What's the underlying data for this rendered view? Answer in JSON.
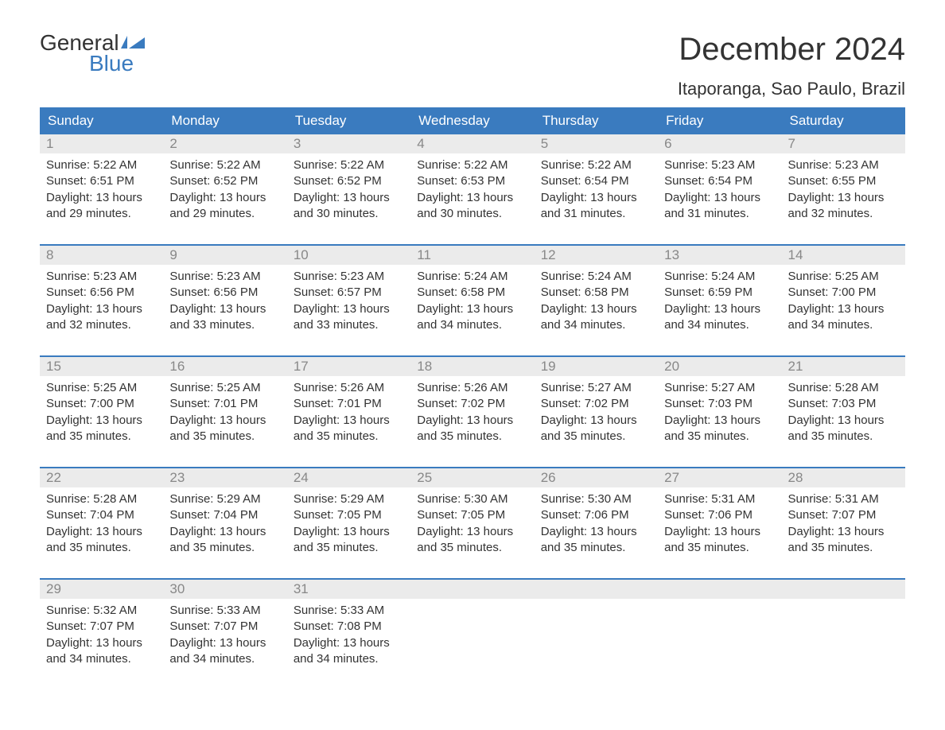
{
  "brand": {
    "word1": "General",
    "word2": "Blue",
    "accent_color": "#3a7bbf",
    "text_color": "#333333"
  },
  "title": "December 2024",
  "location": "Itaporanga, Sao Paulo, Brazil",
  "colors": {
    "header_bg": "#3a7bbf",
    "header_text": "#ffffff",
    "daynum_bg": "#ebebeb",
    "daynum_text": "#888888",
    "body_text": "#333333",
    "page_bg": "#ffffff"
  },
  "fonts": {
    "title_size_pt": 30,
    "location_size_pt": 17,
    "header_size_pt": 13,
    "day_size_pt": 13,
    "detail_size_pt": 11
  },
  "day_headers": [
    "Sunday",
    "Monday",
    "Tuesday",
    "Wednesday",
    "Thursday",
    "Friday",
    "Saturday"
  ],
  "weeks": [
    [
      {
        "n": "1",
        "sr": "Sunrise: 5:22 AM",
        "ss": "Sunset: 6:51 PM",
        "d1": "Daylight: 13 hours",
        "d2": "and 29 minutes."
      },
      {
        "n": "2",
        "sr": "Sunrise: 5:22 AM",
        "ss": "Sunset: 6:52 PM",
        "d1": "Daylight: 13 hours",
        "d2": "and 29 minutes."
      },
      {
        "n": "3",
        "sr": "Sunrise: 5:22 AM",
        "ss": "Sunset: 6:52 PM",
        "d1": "Daylight: 13 hours",
        "d2": "and 30 minutes."
      },
      {
        "n": "4",
        "sr": "Sunrise: 5:22 AM",
        "ss": "Sunset: 6:53 PM",
        "d1": "Daylight: 13 hours",
        "d2": "and 30 minutes."
      },
      {
        "n": "5",
        "sr": "Sunrise: 5:22 AM",
        "ss": "Sunset: 6:54 PM",
        "d1": "Daylight: 13 hours",
        "d2": "and 31 minutes."
      },
      {
        "n": "6",
        "sr": "Sunrise: 5:23 AM",
        "ss": "Sunset: 6:54 PM",
        "d1": "Daylight: 13 hours",
        "d2": "and 31 minutes."
      },
      {
        "n": "7",
        "sr": "Sunrise: 5:23 AM",
        "ss": "Sunset: 6:55 PM",
        "d1": "Daylight: 13 hours",
        "d2": "and 32 minutes."
      }
    ],
    [
      {
        "n": "8",
        "sr": "Sunrise: 5:23 AM",
        "ss": "Sunset: 6:56 PM",
        "d1": "Daylight: 13 hours",
        "d2": "and 32 minutes."
      },
      {
        "n": "9",
        "sr": "Sunrise: 5:23 AM",
        "ss": "Sunset: 6:56 PM",
        "d1": "Daylight: 13 hours",
        "d2": "and 33 minutes."
      },
      {
        "n": "10",
        "sr": "Sunrise: 5:23 AM",
        "ss": "Sunset: 6:57 PM",
        "d1": "Daylight: 13 hours",
        "d2": "and 33 minutes."
      },
      {
        "n": "11",
        "sr": "Sunrise: 5:24 AM",
        "ss": "Sunset: 6:58 PM",
        "d1": "Daylight: 13 hours",
        "d2": "and 34 minutes."
      },
      {
        "n": "12",
        "sr": "Sunrise: 5:24 AM",
        "ss": "Sunset: 6:58 PM",
        "d1": "Daylight: 13 hours",
        "d2": "and 34 minutes."
      },
      {
        "n": "13",
        "sr": "Sunrise: 5:24 AM",
        "ss": "Sunset: 6:59 PM",
        "d1": "Daylight: 13 hours",
        "d2": "and 34 minutes."
      },
      {
        "n": "14",
        "sr": "Sunrise: 5:25 AM",
        "ss": "Sunset: 7:00 PM",
        "d1": "Daylight: 13 hours",
        "d2": "and 34 minutes."
      }
    ],
    [
      {
        "n": "15",
        "sr": "Sunrise: 5:25 AM",
        "ss": "Sunset: 7:00 PM",
        "d1": "Daylight: 13 hours",
        "d2": "and 35 minutes."
      },
      {
        "n": "16",
        "sr": "Sunrise: 5:25 AM",
        "ss": "Sunset: 7:01 PM",
        "d1": "Daylight: 13 hours",
        "d2": "and 35 minutes."
      },
      {
        "n": "17",
        "sr": "Sunrise: 5:26 AM",
        "ss": "Sunset: 7:01 PM",
        "d1": "Daylight: 13 hours",
        "d2": "and 35 minutes."
      },
      {
        "n": "18",
        "sr": "Sunrise: 5:26 AM",
        "ss": "Sunset: 7:02 PM",
        "d1": "Daylight: 13 hours",
        "d2": "and 35 minutes."
      },
      {
        "n": "19",
        "sr": "Sunrise: 5:27 AM",
        "ss": "Sunset: 7:02 PM",
        "d1": "Daylight: 13 hours",
        "d2": "and 35 minutes."
      },
      {
        "n": "20",
        "sr": "Sunrise: 5:27 AM",
        "ss": "Sunset: 7:03 PM",
        "d1": "Daylight: 13 hours",
        "d2": "and 35 minutes."
      },
      {
        "n": "21",
        "sr": "Sunrise: 5:28 AM",
        "ss": "Sunset: 7:03 PM",
        "d1": "Daylight: 13 hours",
        "d2": "and 35 minutes."
      }
    ],
    [
      {
        "n": "22",
        "sr": "Sunrise: 5:28 AM",
        "ss": "Sunset: 7:04 PM",
        "d1": "Daylight: 13 hours",
        "d2": "and 35 minutes."
      },
      {
        "n": "23",
        "sr": "Sunrise: 5:29 AM",
        "ss": "Sunset: 7:04 PM",
        "d1": "Daylight: 13 hours",
        "d2": "and 35 minutes."
      },
      {
        "n": "24",
        "sr": "Sunrise: 5:29 AM",
        "ss": "Sunset: 7:05 PM",
        "d1": "Daylight: 13 hours",
        "d2": "and 35 minutes."
      },
      {
        "n": "25",
        "sr": "Sunrise: 5:30 AM",
        "ss": "Sunset: 7:05 PM",
        "d1": "Daylight: 13 hours",
        "d2": "and 35 minutes."
      },
      {
        "n": "26",
        "sr": "Sunrise: 5:30 AM",
        "ss": "Sunset: 7:06 PM",
        "d1": "Daylight: 13 hours",
        "d2": "and 35 minutes."
      },
      {
        "n": "27",
        "sr": "Sunrise: 5:31 AM",
        "ss": "Sunset: 7:06 PM",
        "d1": "Daylight: 13 hours",
        "d2": "and 35 minutes."
      },
      {
        "n": "28",
        "sr": "Sunrise: 5:31 AM",
        "ss": "Sunset: 7:07 PM",
        "d1": "Daylight: 13 hours",
        "d2": "and 35 minutes."
      }
    ],
    [
      {
        "n": "29",
        "sr": "Sunrise: 5:32 AM",
        "ss": "Sunset: 7:07 PM",
        "d1": "Daylight: 13 hours",
        "d2": "and 34 minutes."
      },
      {
        "n": "30",
        "sr": "Sunrise: 5:33 AM",
        "ss": "Sunset: 7:07 PM",
        "d1": "Daylight: 13 hours",
        "d2": "and 34 minutes."
      },
      {
        "n": "31",
        "sr": "Sunrise: 5:33 AM",
        "ss": "Sunset: 7:08 PM",
        "d1": "Daylight: 13 hours",
        "d2": "and 34 minutes."
      },
      null,
      null,
      null,
      null
    ]
  ]
}
